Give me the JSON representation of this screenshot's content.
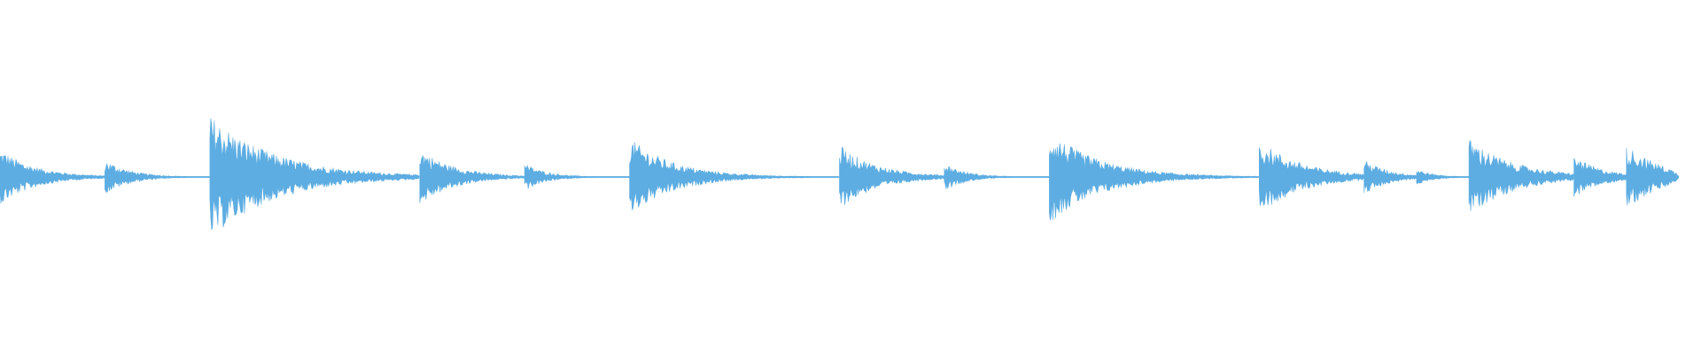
{
  "waveform": {
    "color": "#5dade2",
    "length": 16,
    "onsets": [
      0,
      1,
      2,
      4,
      5,
      6,
      8,
      9,
      10,
      12,
      13,
      13.5,
      14,
      15,
      15.5
    ],
    "peaks": [
      0.15,
      0.09,
      0.34,
      0.15,
      0.07,
      0.21,
      0.17,
      0.07,
      0.25,
      0.2,
      0.09,
      0.04,
      0.21,
      0.11,
      0.17
    ]
  }
}
